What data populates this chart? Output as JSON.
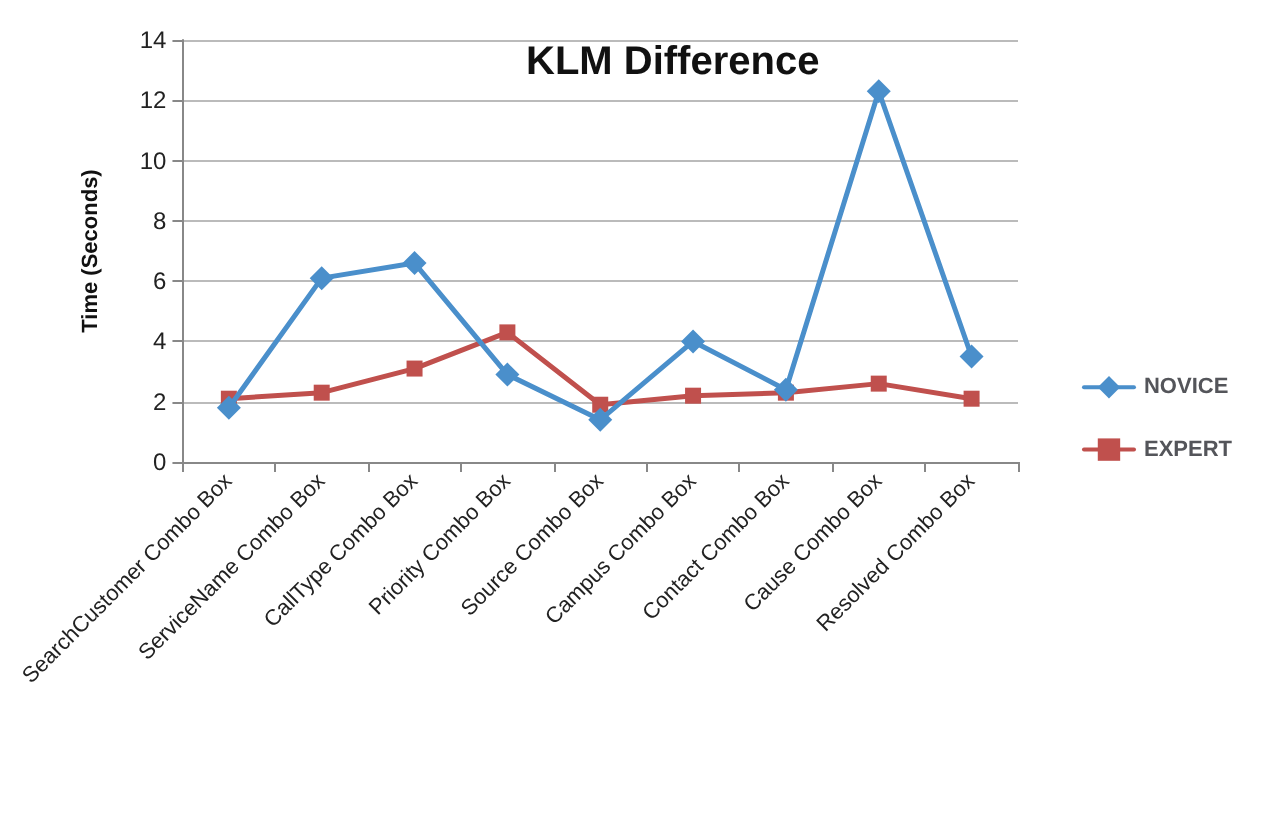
{
  "chart_data": {
    "type": "line",
    "title": "KLM Difference",
    "ylabel": "Time (Seconds)",
    "categories": [
      "SearchCustomer Combo Box",
      "ServiceName Combo Box",
      "CallType Combo Box",
      "Priority Combo Box",
      "Source Combo Box",
      "Campus Combo Box",
      "Contact Combo Box",
      "Cause Combo Box",
      "Resolved Combo Box"
    ],
    "series": [
      {
        "name": "NOVICE",
        "color": "#4a8fcb",
        "marker": "diamond",
        "values": [
          1.8,
          6.1,
          6.6,
          2.9,
          1.4,
          4.0,
          2.4,
          12.3,
          3.5
        ]
      },
      {
        "name": "EXPERT",
        "color": "#c0504d",
        "marker": "square",
        "values": [
          2.1,
          2.3,
          3.1,
          4.3,
          1.9,
          2.2,
          2.3,
          2.6,
          2.1
        ]
      }
    ],
    "ylim": [
      0,
      14
    ],
    "yticks": [
      0,
      2,
      4,
      6,
      8,
      10,
      12,
      14
    ],
    "grid": "y",
    "legend": "right",
    "line_style": "solid"
  }
}
